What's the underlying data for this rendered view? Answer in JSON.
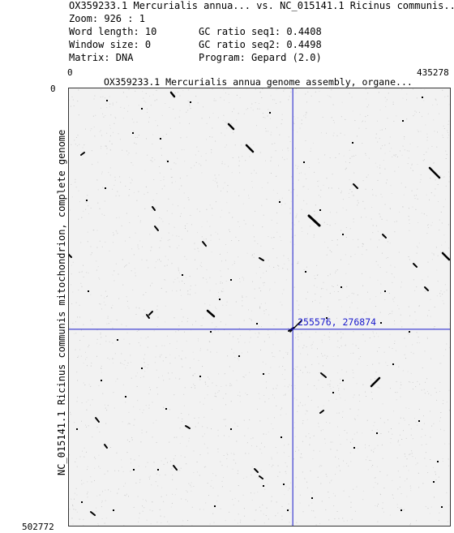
{
  "header": {
    "title_line": "OX359233.1 Mercurialis annua... vs. NC_015141.1 Ricinus communis...",
    "zoom": "Zoom: 926 : 1",
    "word_length": "Word length: 10",
    "gc_seq1": "GC ratio seq1: 0.4408",
    "window_size": "Window size: 0",
    "gc_seq2": "GC ratio seq2: 0.4498",
    "matrix": "Matrix: DNA",
    "program": "Program: Gepard (2.0)"
  },
  "plot": {
    "x_start_label": "0",
    "x_end_label": "435278",
    "y_start_label": "0",
    "y_end_label": "502772",
    "x_axis_title": "OX359233.1 Mercurialis annua genome assembly, organe...",
    "y_axis_title": "NC_015141.1 Ricinus communis mitochondrion, complete genome",
    "crosshair_readout": "255576, 276874",
    "crosshair": {
      "x": 255576,
      "y": 276874
    },
    "x_max": 435278,
    "y_max": 502772,
    "colors": {
      "crosshair": "#1a1acc",
      "frame": "#333333",
      "dots": "#000000",
      "noise": "#bdbdbd"
    }
  }
}
